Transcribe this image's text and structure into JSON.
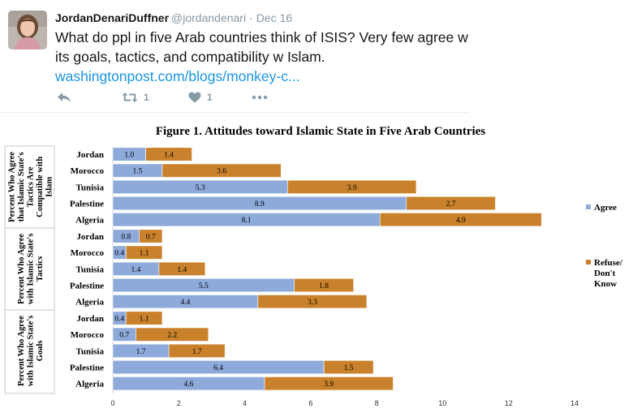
{
  "tweet": {
    "display_name": "JordanDenariDuffner",
    "handle": "@jordandenari",
    "separator": "·",
    "date": "Dec 16",
    "text": "What do ppl in five Arab countries think of ISIS? Very few agree w its goals, tactics, and compatibility w Islam.",
    "link": "washingtonpost.com/blogs/monkey-c...",
    "actions": {
      "reply_icon": "reply-icon",
      "retweet_icon": "retweet-icon",
      "retweet_count": "1",
      "like_icon": "heart-icon",
      "like_count": "1",
      "more_icon": "more-dots-icon"
    },
    "colors": {
      "link": "#1b95e0",
      "muted": "#8899a6"
    }
  },
  "chart_data": {
    "type": "bar",
    "orientation": "horizontal",
    "stacked": true,
    "title": "Figure 1.  Attitudes toward Islamic State in Five Arab Countries",
    "groups": [
      {
        "label": [
          "Percent Who Agree",
          "that Islamic State's",
          "Tactics Are",
          "Compatible with",
          "Islam"
        ],
        "categories": [
          "Jordan",
          "Morocco",
          "Tunisia",
          "Palestine",
          "Algeria"
        ],
        "series": [
          {
            "name": "Agree",
            "values": [
              1.0,
              1.5,
              5.3,
              8.9,
              8.1
            ],
            "labels": [
              "1.0",
              "1.5",
              "5.3",
              "8.9",
              "8.1"
            ]
          },
          {
            "name": "Refuse/ Don't Know",
            "values": [
              1.4,
              3.6,
              3.9,
              2.7,
              4.9
            ],
            "labels": [
              "1.4",
              "3.6",
              "3.9",
              "2.7",
              "4.9"
            ]
          }
        ]
      },
      {
        "label": [
          "Percent Who Agree",
          "with Islamic State's",
          "Tactics"
        ],
        "categories": [
          "Jordan",
          "Morocco",
          "Tunisia",
          "Palestine",
          "Algeria"
        ],
        "series": [
          {
            "name": "Agree",
            "values": [
              0.8,
              0.4,
              1.4,
              5.5,
              4.4
            ],
            "labels": [
              "0.8",
              "0.4",
              "1.4",
              "5.5",
              "4.4"
            ]
          },
          {
            "name": "Refuse/ Don't Know",
            "values": [
              0.7,
              1.1,
              1.4,
              1.8,
              3.3
            ],
            "labels": [
              "0.7",
              "1.1",
              "1.4",
              "1.8",
              "3.3"
            ]
          }
        ]
      },
      {
        "label": [
          "Percent Who Agree",
          "with Islamic State's",
          "Goals"
        ],
        "categories": [
          "Jordan",
          "Morocco",
          "Tunisia",
          "Palestine",
          "Algeria"
        ],
        "series": [
          {
            "name": "Agree",
            "values": [
              0.4,
              0.7,
              1.7,
              6.4,
              4.6
            ],
            "labels": [
              "0.4",
              "0.7",
              "1.7",
              "6.4",
              "4.6"
            ]
          },
          {
            "name": "Refuse/ Don't Know",
            "values": [
              1.1,
              2.2,
              1.7,
              1.5,
              3.9
            ],
            "labels": [
              "1.1",
              "2.2",
              "1.7",
              "1.5",
              "3.9"
            ]
          }
        ]
      }
    ],
    "xlim": [
      0,
      14
    ],
    "xticks": [
      "0",
      "2",
      "4",
      "6",
      "8",
      "10",
      "12",
      "14"
    ],
    "legend": {
      "placement": "right",
      "items": [
        {
          "label": [
            "Agree"
          ],
          "color": "#8eaadb"
        },
        {
          "label": [
            "Refuse/",
            "Don't",
            "Know"
          ],
          "color": "#c9822b"
        }
      ]
    },
    "colors": {
      "agree": "#8eaadb",
      "refuse": "#c9822b"
    }
  }
}
